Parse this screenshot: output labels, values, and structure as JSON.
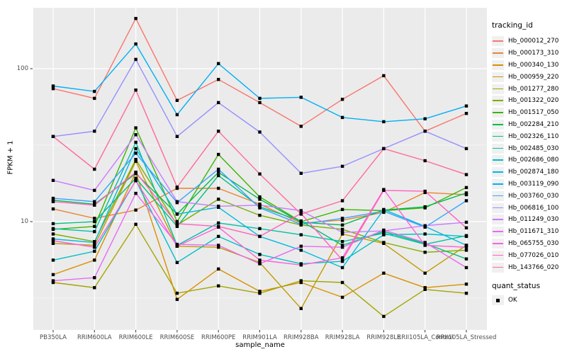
{
  "chart_data": {
    "type": "line",
    "title": "",
    "xlabel": "sample_name",
    "ylabel": "FPKM + 1",
    "y_scale": "log10",
    "ylim": [
      2.0,
      250
    ],
    "y_ticks": [
      100,
      10
    ],
    "y_tick_labels": [
      "100",
      "10"
    ],
    "y_minor_breaks": [
      31.62,
      3.162
    ],
    "grid": "on",
    "panel_bg": "#EBEBEB",
    "grid_color": "#FFFFFF",
    "tick_text_color": "#4D4D4D",
    "point_shape": "square",
    "point_color": "#000000",
    "categories": [
      "PB350LA",
      "RRIM600LA",
      "RRIM600LE",
      "RRIM600SE",
      "RRIM600PE",
      "RRIM901LA",
      "RRIM928BA",
      "RRIM928LA",
      "RRIM928LE",
      "RRII105LA_Control",
      "RRII105LA_Stressed"
    ],
    "legend": {
      "title": "tracking_id",
      "position": "right"
    },
    "legend2": {
      "title": "quant_status",
      "entries": [
        "OK"
      ]
    },
    "series": [
      {
        "name": "Hb_000012_270",
        "color": "#F8766D",
        "values": [
          74,
          64,
          213,
          62,
          85,
          60,
          42,
          63,
          90,
          39,
          51
        ]
      },
      {
        "name": "Hb_000173_310",
        "color": "#EA8331",
        "values": [
          12.1,
          10.5,
          11.9,
          16.5,
          16.5,
          13,
          9.8,
          10.2,
          11.5,
          15.5,
          15
        ]
      },
      {
        "name": "Hb_000340_130",
        "color": "#D89000",
        "values": [
          4.5,
          5.6,
          21,
          3.1,
          4.9,
          3.5,
          4.0,
          3.2,
          4.6,
          3.7,
          3.9
        ]
      },
      {
        "name": "Hb_000959_220",
        "color": "#C09B00",
        "values": [
          7.2,
          7.0,
          24.8,
          6.9,
          6.8,
          5.4,
          2.7,
          8.3,
          7.2,
          4.6,
          7.0
        ]
      },
      {
        "name": "Hb_001277_280",
        "color": "#A3A500",
        "values": [
          4.0,
          3.7,
          9.6,
          3.4,
          3.8,
          3.4,
          4.1,
          4.0,
          2.4,
          3.6,
          3.4
        ]
      },
      {
        "name": "Hb_001322_020",
        "color": "#7CAE00",
        "values": [
          8.3,
          7.4,
          25.5,
          9.5,
          14,
          11,
          9.5,
          8.9,
          7.3,
          6.3,
          6.5
        ]
      },
      {
        "name": "Hb_001517_050",
        "color": "#39B600",
        "values": [
          8.9,
          9.3,
          41,
          10,
          27.5,
          14.5,
          10,
          12,
          11.8,
          12.3,
          16.7
        ]
      },
      {
        "name": "Hb_002284_210",
        "color": "#00BB4E",
        "values": [
          13.8,
          13,
          20.6,
          11.2,
          21,
          14,
          9.9,
          9.5,
          11.9,
          12.5,
          15.4
        ]
      },
      {
        "name": "Hb_002326_110",
        "color": "#00BF7D",
        "values": [
          9.7,
          10,
          19.2,
          9.3,
          20,
          12.5,
          10.1,
          7.0,
          8.6,
          7.2,
          5.7
        ]
      },
      {
        "name": "Hb_002485_030",
        "color": "#00C1A3",
        "values": [
          9.0,
          8.6,
          33,
          7.0,
          9.8,
          9.0,
          8.2,
          7.4,
          8.4,
          7.1,
          8.1
        ]
      },
      {
        "name": "Hb_002686_080",
        "color": "#00BFC4",
        "values": [
          5.6,
          6.4,
          18.6,
          5.4,
          8.0,
          6.1,
          5.3,
          5.5,
          8.2,
          8.3,
          8.0
        ]
      },
      {
        "name": "Hb_002874_180",
        "color": "#00BAE0",
        "values": [
          7.7,
          7.3,
          30,
          11.2,
          12.4,
          8.0,
          6.5,
          5.0,
          12.0,
          9.3,
          7.0
        ]
      },
      {
        "name": "Hb_003119_090",
        "color": "#00B0F6",
        "values": [
          77,
          71,
          145,
          50,
          108,
          64,
          65,
          48,
          45,
          47,
          57
        ]
      },
      {
        "name": "Hb_003760_030",
        "color": "#35A2FF",
        "values": [
          14.2,
          13.5,
          28,
          13.3,
          22,
          12.3,
          9.6,
          10.5,
          11.7,
          9.2,
          13.7
        ]
      },
      {
        "name": "Hb_006816_100",
        "color": "#9590FF",
        "values": [
          36,
          39,
          115,
          36,
          60,
          38.5,
          20.7,
          23,
          30,
          39,
          30
        ]
      },
      {
        "name": "Hb_011249_030",
        "color": "#C77CFF",
        "values": [
          18.6,
          16,
          37,
          13.5,
          12.6,
          12.8,
          11.8,
          8.5,
          8.7,
          9.4,
          9.9
        ]
      },
      {
        "name": "Hb_011671_310",
        "color": "#E76BF3",
        "values": [
          4.1,
          4.3,
          15.3,
          7.1,
          7.0,
          5.3,
          6.9,
          6.8,
          8.8,
          7.3,
          5.0
        ]
      },
      {
        "name": "Hb_065755_030",
        "color": "#FA62DB",
        "values": [
          7.5,
          6.8,
          18.5,
          6.9,
          9.2,
          5.6,
          5.2,
          5.8,
          16.2,
          7.0,
          6.8
        ]
      },
      {
        "name": "Hb_077026_010",
        "color": "#FF62BC",
        "values": [
          13.5,
          12.8,
          21,
          9.7,
          9.3,
          8.0,
          11.3,
          5.6,
          16.0,
          15.8,
          9.1
        ]
      },
      {
        "name": "Hb_143766_020",
        "color": "#FF6A98",
        "values": [
          36,
          22,
          72.5,
          16.8,
          39,
          20.5,
          11.2,
          13.7,
          30,
          25,
          20.3
        ]
      }
    ]
  }
}
